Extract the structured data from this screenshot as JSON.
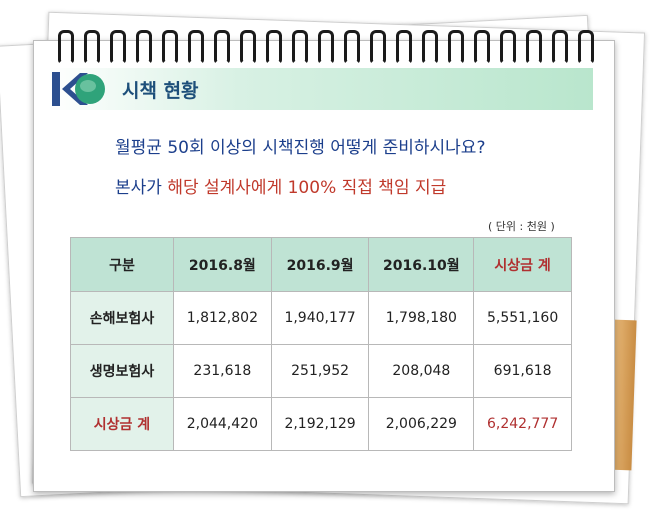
{
  "header": {
    "title": "시책 현황"
  },
  "question": "월평균 50회 이상의 시책진행 어떻게 준비하시나요?",
  "answer": {
    "prefix": "본사가 ",
    "highlight": "해당 설계사에게 100% 직접 책임 지급"
  },
  "unit_note": "( 단위 : 천원 )",
  "table": {
    "columns": [
      "구분",
      "2016.8월",
      "2016.9월",
      "2016.10월",
      "시상금 계"
    ],
    "rows": [
      {
        "label": "손해보험사",
        "values": [
          "1,812,802",
          "1,940,177",
          "1,798,180",
          "5,551,160"
        ]
      },
      {
        "label": "생명보험사",
        "values": [
          "231,618",
          "251,952",
          "208,048",
          "691,618"
        ]
      },
      {
        "label": "시상금 계",
        "values": [
          "2,044,420",
          "2,192,129",
          "2,006,229",
          "6,242,777"
        ]
      }
    ]
  },
  "colors": {
    "accent": "#1d4f7a",
    "highlight": "#c0392b",
    "header_fill": "#bfe3d4"
  },
  "icons": {
    "binder": "spiral-binding-icon",
    "logo": "k-logo-icon"
  }
}
